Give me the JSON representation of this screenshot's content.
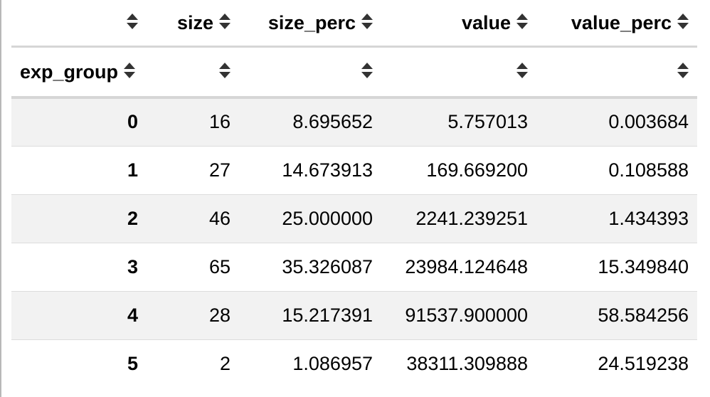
{
  "table": {
    "columns": [
      "size",
      "size_perc",
      "value",
      "value_perc"
    ],
    "index_name": "exp_group",
    "rows": [
      {
        "index": "0",
        "size": "16",
        "size_perc": "8.695652",
        "value": "5.757013",
        "value_perc": "0.003684"
      },
      {
        "index": "1",
        "size": "27",
        "size_perc": "14.673913",
        "value": "169.669200",
        "value_perc": "0.108588"
      },
      {
        "index": "2",
        "size": "46",
        "size_perc": "25.000000",
        "value": "2241.239251",
        "value_perc": "1.434393"
      },
      {
        "index": "3",
        "size": "65",
        "size_perc": "35.326087",
        "value": "23984.124648",
        "value_perc": "15.349840"
      },
      {
        "index": "4",
        "size": "28",
        "size_perc": "15.217391",
        "value": "91537.900000",
        "value_perc": "58.584256"
      },
      {
        "index": "5",
        "size": "2",
        "size_perc": "1.086957",
        "value": "38311.309888",
        "value_perc": "24.519238"
      }
    ]
  }
}
